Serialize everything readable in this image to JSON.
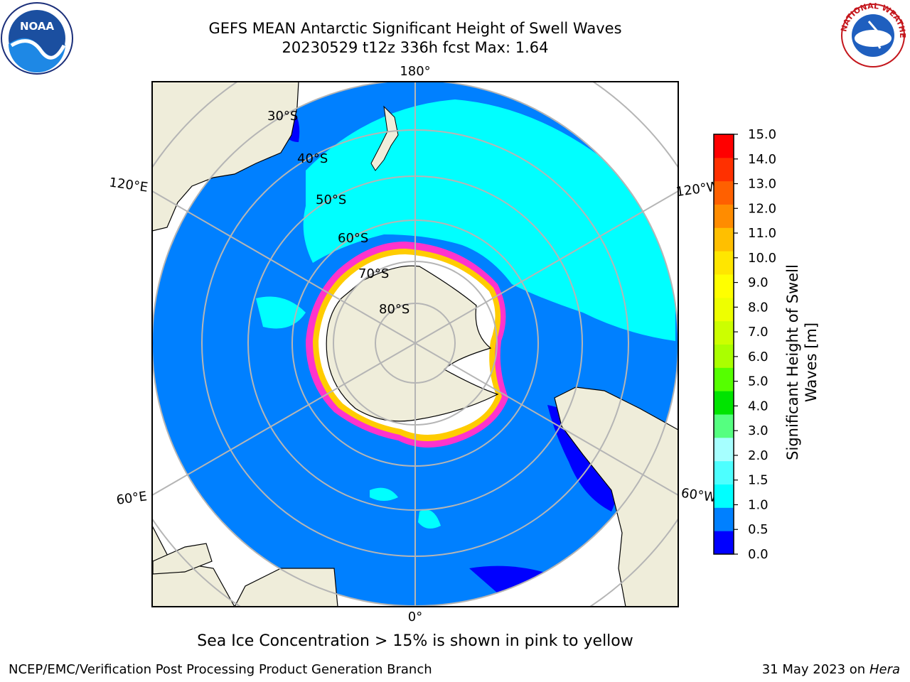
{
  "header": {
    "title_line1": "GEFS MEAN Antarctic Significant Height of Swell Waves",
    "title_line2": "20230529 t12z 336h fcst   Max: 1.64"
  },
  "logos": {
    "left": "noaa-logo",
    "left_text": "NOAA",
    "right": "national-weather-service-logo",
    "right_text": "NATIONAL WEATHER SERVICE"
  },
  "map": {
    "projection": "south-polar-stereographic",
    "longitude_labels": [
      "180°",
      "120°E",
      "120°W",
      "60°E",
      "60°W",
      "0°"
    ],
    "latitude_labels": [
      "30°S",
      "40°S",
      "50°S",
      "60°S",
      "70°S",
      "80°S"
    ],
    "colors": {
      "land": "#efedda",
      "ocean_0_0.5": "#0000ff",
      "ocean_0.5_1.0": "#0080ff",
      "ocean_1.0_1.5": "#00ffff",
      "ice_edge_pink": "#ff33cc",
      "ice_edge_yellow": "#ffcc00",
      "grid": "#b5b5b5"
    }
  },
  "colorbar": {
    "title": "Significant Height of Swell Waves [m]",
    "ticks": [
      "15.0",
      "14.0",
      "13.0",
      "12.0",
      "11.0",
      "10.0",
      "9.0",
      "8.0",
      "7.0",
      "6.0",
      "5.0",
      "4.0",
      "3.0",
      "2.0",
      "1.5",
      "1.0",
      "0.5",
      "0.0"
    ],
    "bin_colors": [
      "#0000ff",
      "#0080ff",
      "#00ffff",
      "#4dffff",
      "#a6ffff",
      "#55ff80",
      "#00e400",
      "#55ff00",
      "#aaff00",
      "#ccff00",
      "#eeff00",
      "#ffff00",
      "#ffe600",
      "#ffbf00",
      "#ff8c00",
      "#ff6000",
      "#ff3000",
      "#ff0000"
    ]
  },
  "footer": {
    "ice_note": "Sea Ice Concentration > 15% is shown in pink to yellow",
    "credit": "NCEP/EMC/Verification Post Processing Product Generation Branch",
    "date": "31 May 2023 on",
    "machine": "Hera"
  }
}
